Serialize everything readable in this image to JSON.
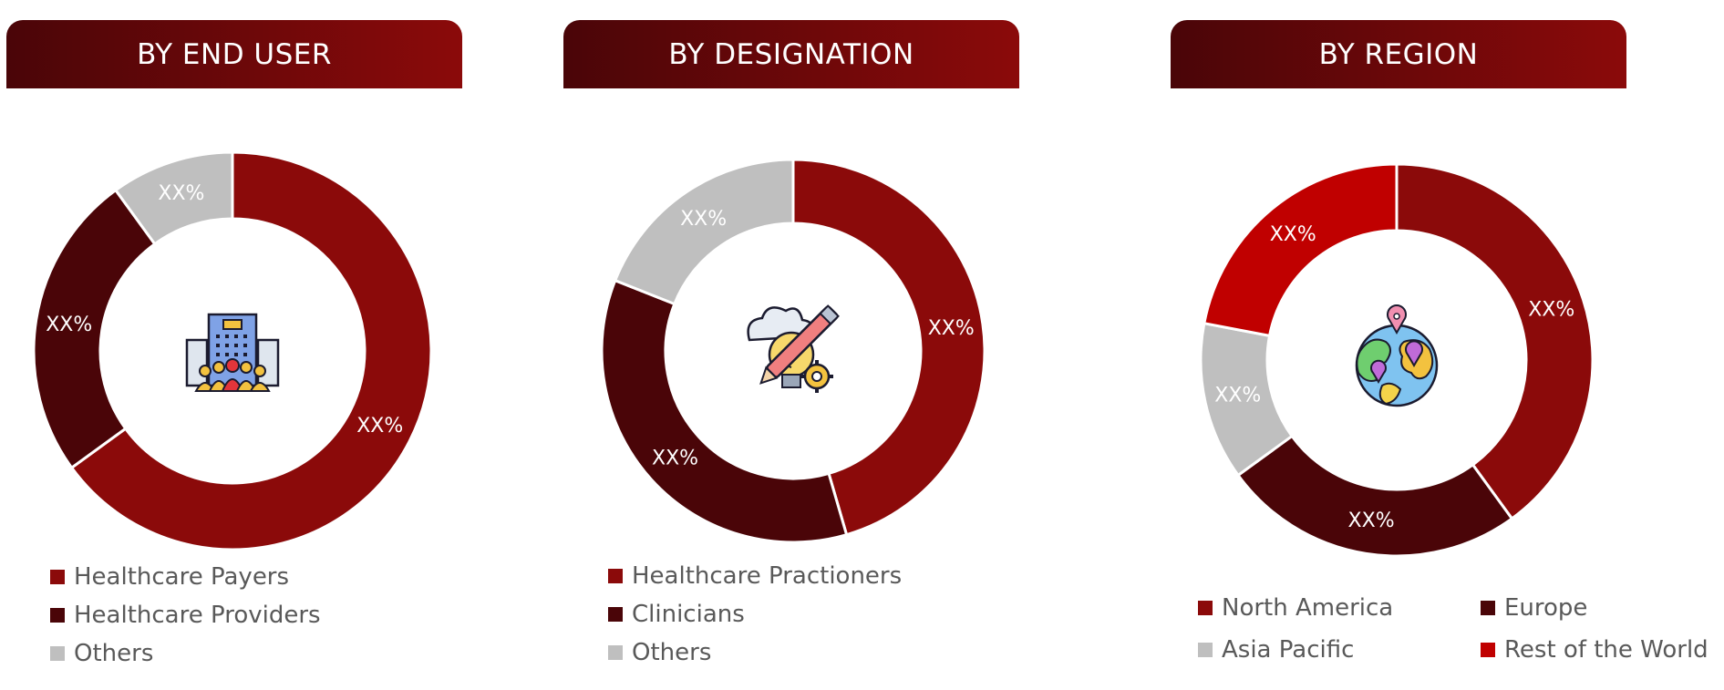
{
  "colors": {
    "banner_start": "#4a0508",
    "banner_end": "#8b0a0a"
  },
  "chart_data": [
    {
      "type": "donut",
      "title": "BY END USER",
      "icon": "hospital-people-icon",
      "slices": [
        {
          "name": "Healthcare Payers",
          "value": 65,
          "label": "XX%",
          "color": "#8b0a0a"
        },
        {
          "name": "Healthcare Providers",
          "value": 25,
          "label": "XX%",
          "color": "#4a0508"
        },
        {
          "name": "Others",
          "value": 10,
          "label": "XX%",
          "color": "#bfbfbf"
        }
      ],
      "legend_layout": "column"
    },
    {
      "type": "donut",
      "title": "BY DESIGNATION",
      "icon": "idea-bulb-pencil-gear-icon",
      "slices": [
        {
          "name": "Healthcare Practioners",
          "value": 45.5,
          "label": "XX%",
          "color": "#8b0a0a"
        },
        {
          "name": "Clinicians",
          "value": 35.5,
          "label": "XX%",
          "color": "#4a0508"
        },
        {
          "name": "Others",
          "value": 19,
          "label": "XX%",
          "color": "#bfbfbf"
        }
      ],
      "legend_layout": "column"
    },
    {
      "type": "donut",
      "title": "BY REGION",
      "icon": "globe-pins-icon",
      "slices": [
        {
          "name": "North America",
          "value": 40,
          "label": "XX%",
          "color": "#8b0a0a"
        },
        {
          "name": "Europe",
          "value": 25,
          "label": "XX%",
          "color": "#4a0508"
        },
        {
          "name": "Asia Pacific",
          "value": 13,
          "label": "XX%",
          "color": "#bfbfbf"
        },
        {
          "name": "Rest of the World",
          "value": 22,
          "label": "XX%",
          "color": "#c00000"
        }
      ],
      "legend_layout": "two-columns"
    }
  ]
}
